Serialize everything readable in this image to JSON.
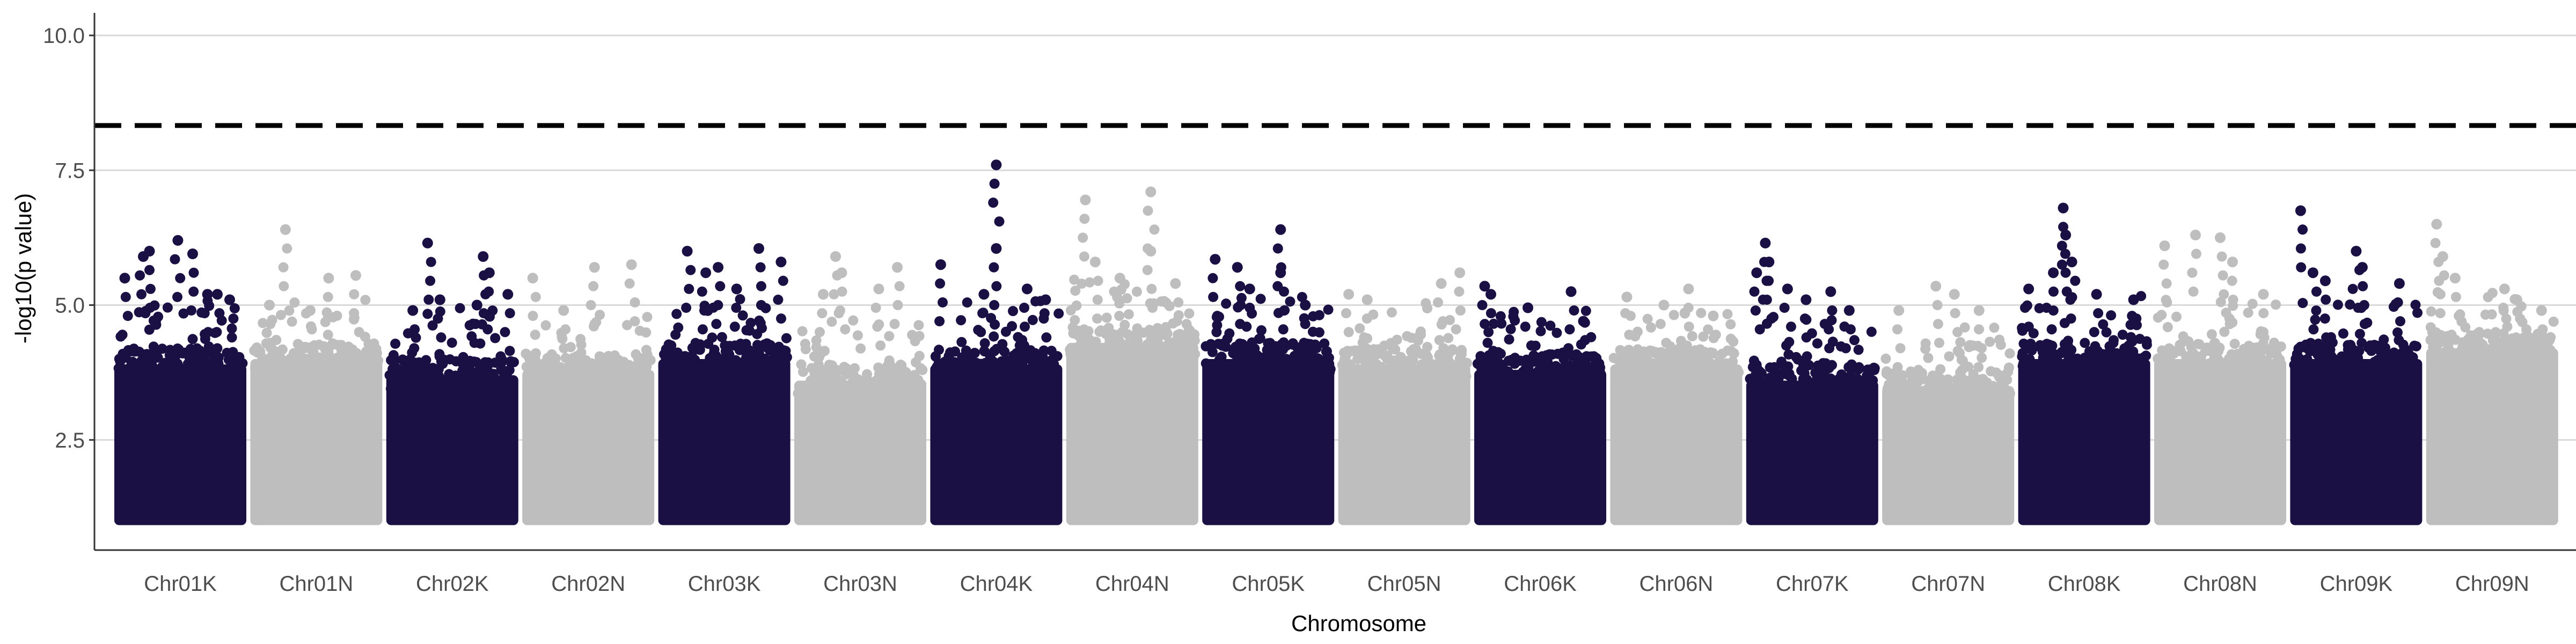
{
  "chart_data": {
    "type": "scatter",
    "subtype": "manhattan",
    "title": "",
    "xlabel": "Chromosome",
    "ylabel": "-log10(p value)",
    "ylim": [
      1.0,
      10.5
    ],
    "yticks": [
      2.5,
      5.0,
      7.5,
      10.0
    ],
    "ytick_labels": [
      "2.5",
      "5.0",
      "7.5",
      "10.0"
    ],
    "grid": "horizontal major gridlines",
    "legend": "none",
    "threshold": 8.33,
    "threshold_style": "dashed black line",
    "colors": {
      "odd": "#1b1044",
      "even": "#bebebe",
      "threshold": "#000000",
      "grid": "#d9d9d9"
    },
    "chromosomes": [
      {
        "name": "Chr01K",
        "color": "#1b1044",
        "dense_top": 3.9,
        "tail_top": 4.8,
        "peaks": [
          [
            0.05,
            5.5
          ],
          [
            0.2,
            5.9
          ],
          [
            0.25,
            6.0
          ],
          [
            0.48,
            6.2
          ],
          [
            0.6,
            5.95
          ],
          [
            0.72,
            5.2
          ],
          [
            0.8,
            5.2
          ],
          [
            0.9,
            5.1
          ]
        ]
      },
      {
        "name": "Chr01N",
        "color": "#bebebe",
        "dense_top": 4.0,
        "tail_top": 4.8,
        "peaks": [
          [
            0.25,
            6.4
          ],
          [
            0.12,
            5.0
          ],
          [
            0.6,
            5.5
          ],
          [
            0.82,
            5.55
          ],
          [
            0.45,
            4.9
          ]
        ]
      },
      {
        "name": "Chr02K",
        "color": "#1b1044",
        "dense_top": 3.7,
        "tail_top": 4.7,
        "peaks": [
          [
            0.3,
            6.15
          ],
          [
            0.4,
            5.1
          ],
          [
            0.18,
            4.9
          ],
          [
            0.75,
            5.9
          ],
          [
            0.8,
            5.6
          ],
          [
            0.7,
            5.0
          ],
          [
            0.95,
            5.2
          ]
        ]
      },
      {
        "name": "Chr02N",
        "color": "#bebebe",
        "dense_top": 3.8,
        "tail_top": 4.6,
        "peaks": [
          [
            0.05,
            5.5
          ],
          [
            0.55,
            5.7
          ],
          [
            0.85,
            5.75
          ],
          [
            0.3,
            4.9
          ]
        ]
      },
      {
        "name": "Chr03K",
        "color": "#1b1044",
        "dense_top": 4.0,
        "tail_top": 4.9,
        "peaks": [
          [
            0.2,
            6.0
          ],
          [
            0.45,
            5.7
          ],
          [
            0.35,
            5.6
          ],
          [
            0.6,
            5.3
          ],
          [
            0.78,
            6.05
          ],
          [
            0.96,
            5.8
          ]
        ]
      },
      {
        "name": "Chr03N",
        "color": "#bebebe",
        "dense_top": 3.6,
        "tail_top": 4.5,
        "peaks": [
          [
            0.3,
            5.9
          ],
          [
            0.35,
            5.6
          ],
          [
            0.2,
            5.2
          ],
          [
            0.8,
            5.7
          ],
          [
            0.65,
            5.3
          ]
        ]
      },
      {
        "name": "Chr04K",
        "color": "#1b1044",
        "dense_top": 3.9,
        "tail_top": 4.8,
        "peaks": [
          [
            0.05,
            5.75
          ],
          [
            0.4,
            5.2
          ],
          [
            0.5,
            6.05
          ],
          [
            0.5,
            7.6
          ],
          [
            0.75,
            5.3
          ],
          [
            0.9,
            5.1
          ]
        ]
      },
      {
        "name": "Chr04N",
        "color": "#bebebe",
        "dense_top": 4.3,
        "tail_top": 5.2,
        "peaks": [
          [
            0.12,
            6.95
          ],
          [
            0.65,
            7.1
          ],
          [
            0.65,
            6.0
          ],
          [
            0.2,
            5.8
          ],
          [
            0.4,
            5.5
          ],
          [
            0.85,
            5.4
          ]
        ]
      },
      {
        "name": "Chr05K",
        "color": "#1b1044",
        "dense_top": 4.0,
        "tail_top": 4.9,
        "peaks": [
          [
            0.07,
            5.85
          ],
          [
            0.25,
            5.7
          ],
          [
            0.35,
            5.3
          ],
          [
            0.6,
            5.6
          ],
          [
            0.6,
            6.4
          ],
          [
            0.8,
            5.0
          ]
        ]
      },
      {
        "name": "Chr05N",
        "color": "#bebebe",
        "dense_top": 3.9,
        "tail_top": 4.8,
        "peaks": [
          [
            0.05,
            5.2
          ],
          [
            0.2,
            5.1
          ],
          [
            0.8,
            5.4
          ],
          [
            0.95,
            5.6
          ]
        ]
      },
      {
        "name": "Chr06K",
        "color": "#1b1044",
        "dense_top": 3.8,
        "tail_top": 4.6,
        "peaks": [
          [
            0.05,
            5.35
          ],
          [
            0.1,
            5.2
          ],
          [
            0.4,
            4.95
          ],
          [
            0.75,
            5.25
          ],
          [
            0.85,
            4.7
          ]
        ]
      },
      {
        "name": "Chr06N",
        "color": "#bebebe",
        "dense_top": 3.9,
        "tail_top": 4.6,
        "peaks": [
          [
            0.1,
            5.15
          ],
          [
            0.4,
            5.0
          ],
          [
            0.6,
            5.3
          ],
          [
            0.8,
            4.8
          ]
        ]
      },
      {
        "name": "Chr07K",
        "color": "#1b1044",
        "dense_top": 3.6,
        "tail_top": 4.6,
        "peaks": [
          [
            0.05,
            5.6
          ],
          [
            0.12,
            6.15
          ],
          [
            0.15,
            5.8
          ],
          [
            0.3,
            5.3
          ],
          [
            0.45,
            5.1
          ],
          [
            0.65,
            5.25
          ],
          [
            0.8,
            4.9
          ]
        ]
      },
      {
        "name": "Chr07N",
        "color": "#bebebe",
        "dense_top": 3.5,
        "tail_top": 4.4,
        "peaks": [
          [
            0.1,
            4.9
          ],
          [
            0.4,
            5.35
          ],
          [
            0.55,
            5.2
          ],
          [
            0.75,
            4.9
          ]
        ]
      },
      {
        "name": "Chr08K",
        "color": "#1b1044",
        "dense_top": 4.0,
        "tail_top": 4.9,
        "peaks": [
          [
            0.05,
            5.3
          ],
          [
            0.25,
            5.6
          ],
          [
            0.33,
            6.8
          ],
          [
            0.35,
            6.3
          ],
          [
            0.4,
            5.8
          ],
          [
            0.6,
            5.2
          ],
          [
            0.9,
            5.1
          ]
        ]
      },
      {
        "name": "Chr08N",
        "color": "#bebebe",
        "dense_top": 4.0,
        "tail_top": 4.8,
        "peaks": [
          [
            0.05,
            6.1
          ],
          [
            0.3,
            6.3
          ],
          [
            0.5,
            6.25
          ],
          [
            0.6,
            5.8
          ],
          [
            0.85,
            5.2
          ]
        ]
      },
      {
        "name": "Chr09K",
        "color": "#1b1044",
        "dense_top": 4.0,
        "tail_top": 4.8,
        "peaks": [
          [
            0.05,
            6.75
          ],
          [
            0.15,
            5.6
          ],
          [
            0.25,
            5.45
          ],
          [
            0.5,
            6.0
          ],
          [
            0.55,
            5.7
          ],
          [
            0.85,
            5.4
          ]
        ]
      },
      {
        "name": "Chr09N",
        "color": "#bebebe",
        "dense_top": 4.2,
        "tail_top": 5.0,
        "peaks": [
          [
            0.05,
            6.5
          ],
          [
            0.1,
            5.9
          ],
          [
            0.2,
            5.5
          ],
          [
            0.6,
            5.3
          ],
          [
            0.7,
            5.1
          ],
          [
            0.9,
            4.9
          ]
        ]
      }
    ]
  }
}
